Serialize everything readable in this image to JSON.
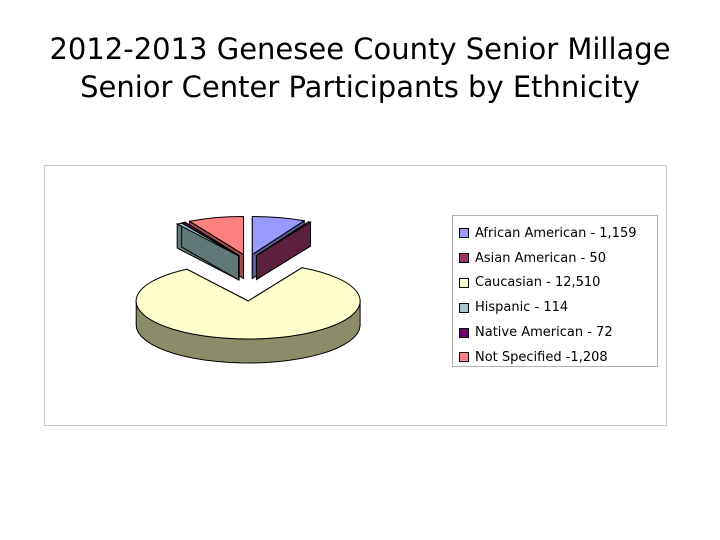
{
  "title": {
    "line1": "2012-2013 Genesee County Senior Millage",
    "line2": "Senior Center Participants by Ethnicity"
  },
  "chart_data": {
    "type": "pie",
    "exploded": true,
    "three_d": true,
    "legend_position": "right",
    "labels": [
      "African American - 1,159",
      "Asian American - 50",
      "Caucasian - 12,510",
      "Hispanic - 114",
      "Native American - 72",
      "Not Specified -1,208"
    ],
    "values": [
      1159,
      50,
      12510,
      114,
      72,
      1208
    ],
    "colors": [
      "#9999ff",
      "#993366",
      "#ffffcc",
      "#a0c8c8",
      "#660066",
      "#ff8080"
    ],
    "side_colors": [
      "#5c5c99",
      "#5c1f3d",
      "#8c8c6a",
      "#607878",
      "#3d003d",
      "#994d4d"
    ]
  }
}
